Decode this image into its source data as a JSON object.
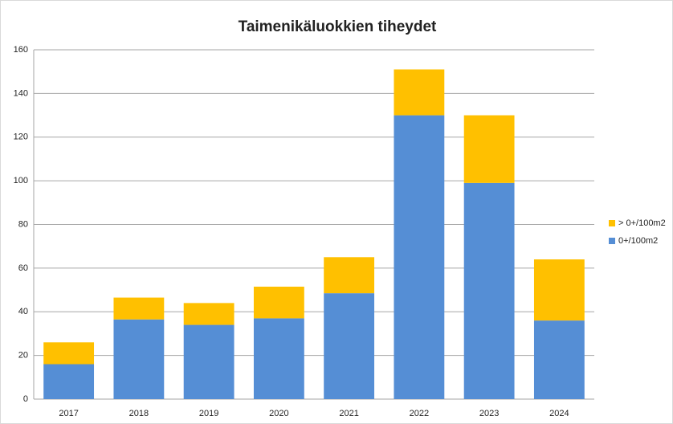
{
  "chart_data": {
    "type": "stacked_bar",
    "title": "Taimenikäluokkien tiheydet",
    "categories": [
      "2017",
      "2018",
      "2019",
      "2020",
      "2021",
      "2022",
      "2023",
      "2024"
    ],
    "series": [
      {
        "name": "0+/100m2",
        "color": "#558ed5",
        "values": [
          16,
          36.5,
          34,
          37,
          48.5,
          130,
          99,
          36
        ]
      },
      {
        "name": "> 0+/100m2",
        "color": "#ffc000",
        "values": [
          10,
          10,
          10,
          14.5,
          16.5,
          21,
          31,
          28
        ]
      }
    ],
    "ylim": [
      0,
      160
    ],
    "yticks": [
      0,
      20,
      40,
      60,
      80,
      100,
      120,
      140,
      160
    ],
    "grid": true,
    "legend": "right"
  }
}
